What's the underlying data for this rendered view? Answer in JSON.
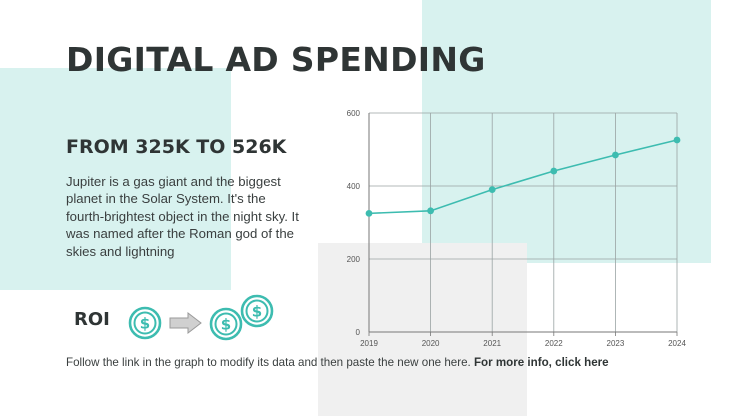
{
  "title": "DIGITAL AD SPENDING",
  "subtitle": "FROM 325K TO 526K",
  "body": "Jupiter is a gas giant and the biggest planet in the Solar System. It's the fourth-brightest object in the night sky. It was named after the Roman god of the skies and lightning",
  "roi": {
    "label": "ROI",
    "icons": [
      "dollar-coin-icon",
      "arrow-right-icon",
      "dollar-coins-stack-icon"
    ]
  },
  "footer": {
    "text": "Follow the link in the graph to modify its data and then paste the new one here. ",
    "link": "For more info, click here"
  },
  "colors": {
    "accent": "#3dbcb0",
    "accent_light": "#d8f2ef",
    "gray_block": "#f0f0f0",
    "title": "#2f3535"
  },
  "chart_data": {
    "type": "line",
    "x": [
      "2019",
      "2020",
      "2021",
      "2022",
      "2023",
      "2024"
    ],
    "series": [
      {
        "values": [
          325,
          332,
          390,
          441,
          485,
          526
        ]
      }
    ],
    "yticks": [
      "0",
      "200",
      "400",
      "600"
    ],
    "ylim": [
      0,
      600
    ],
    "grid": true,
    "legend": "none",
    "line_color": "#3dbcb0"
  }
}
